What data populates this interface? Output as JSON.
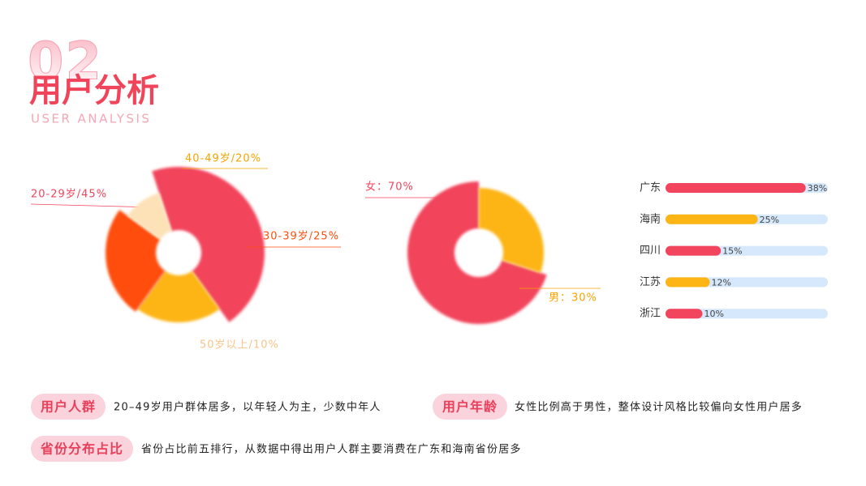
{
  "header": {
    "number": "02",
    "title": "用户分析",
    "subtitle": "USER ANALYSIS"
  },
  "chart_data": [
    {
      "type": "pie",
      "values": [
        45,
        20,
        25,
        10
      ],
      "value_labels": [
        "20-29岁/45%",
        "40-49岁/20%",
        "30-39岁/25%",
        "50岁以上/10%"
      ],
      "colors": [
        "#f2445c",
        "#fdb515",
        "#ff4e0c",
        "#fde2b8"
      ]
    },
    {
      "type": "pie",
      "values": [
        70,
        30
      ],
      "value_labels": [
        "女：70%",
        "男：30%"
      ],
      "colors": [
        "#f2445c",
        "#fdb515"
      ]
    },
    {
      "type": "bar",
      "orientation": "horizontal",
      "categories": [
        "广东",
        "海南",
        "四川",
        "江苏",
        "浙江"
      ],
      "values": [
        38,
        25,
        15,
        12,
        10
      ],
      "value_labels": [
        "38%",
        "25%",
        "15%",
        "12%",
        "10%"
      ],
      "colors": [
        "#f2445c",
        "#fdb515",
        "#f2445c",
        "#fdb515",
        "#f2445c"
      ],
      "track_color": "#d6e8fb",
      "xlim": [
        0,
        44
      ]
    }
  ],
  "notes": [
    {
      "tag": "用户人群",
      "text": "20–49岁用户群体居多，以年轻人为主，少数中年人"
    },
    {
      "tag": "用户年龄",
      "text": "女性比例高于男性，整体设计风格比较偏向女性用户居多"
    },
    {
      "tag": "省份分布占比",
      "text": "省份占比前五排行，从数据中得出用户人群主要消费在广东和海南省份居多"
    }
  ]
}
